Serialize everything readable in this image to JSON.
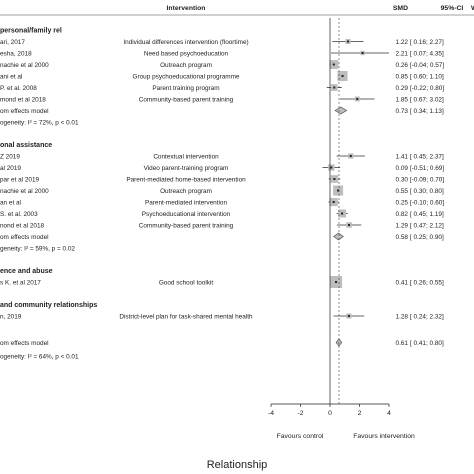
{
  "chart_data": {
    "type": "forest",
    "title": "",
    "caption": "Relationship",
    "columns": {
      "study": "",
      "intervention": "Intervention",
      "smd": "SMD",
      "ci": "95%-CI",
      "weight": "W"
    },
    "x_ticks": [
      "-4",
      "-2",
      "0",
      "2",
      "4"
    ],
    "xlim": [
      -4,
      4
    ],
    "favours_left": "Favours control",
    "favours_right": "Favours intervention",
    "groups": [
      {
        "header": "personal/family rel",
        "studies": [
          {
            "study": "ari, 2017",
            "intervention": "Individual differences intervention (floortime)",
            "smd": 1.22,
            "lo": 0.16,
            "hi": 2.27,
            "smd_text": "1.22",
            "ci_text": "[ 0.16; 2.27]"
          },
          {
            "study": "esha, 2018",
            "intervention": "Need based psychoeducation",
            "smd": 2.21,
            "lo": 0.07,
            "hi": 4.35,
            "smd_text": "2.21",
            "ci_text": "[ 0.07; 4.35]"
          },
          {
            "study": "nachie et al 2000",
            "intervention": "Outreach program",
            "smd": 0.26,
            "lo": -0.04,
            "hi": 0.57,
            "smd_text": "0.26",
            "ci_text": "[-0.04; 0.57]"
          },
          {
            "study": "ani et al",
            "intervention": "Group psychoeducational programme",
            "smd": 0.85,
            "lo": 0.6,
            "hi": 1.1,
            "smd_text": "0.85",
            "ci_text": "[ 0.60; 1.10]"
          },
          {
            "study": "P. et al. 2008",
            "intervention": "Parent training program",
            "smd": 0.29,
            "lo": -0.22,
            "hi": 0.8,
            "smd_text": "0.29",
            "ci_text": "[-0.22; 0.80]"
          },
          {
            "study": "mond et al 2018",
            "intervention": "Community-based parent training",
            "smd": 1.85,
            "lo": 0.67,
            "hi": 3.02,
            "smd_text": "1.85",
            "ci_text": "[ 0.67; 3.02]"
          }
        ],
        "model": {
          "label": "om effects model",
          "smd": 0.73,
          "lo": 0.34,
          "hi": 1.13,
          "smd_text": "0.73",
          "ci_text": "[ 0.34; 1.13]"
        },
        "heterogeneity": "ogeneity: I² = 72%, p < 0.01"
      },
      {
        "header": "onal assistance",
        "studies": [
          {
            "study": "Z 2019",
            "intervention": "Contextual intervention",
            "smd": 1.41,
            "lo": 0.45,
            "hi": 2.37,
            "smd_text": "1.41",
            "ci_text": "[ 0.45; 2.37]"
          },
          {
            "study": "al 2019",
            "intervention": "Video parent-training program",
            "smd": 0.09,
            "lo": -0.51,
            "hi": 0.69,
            "smd_text": "0.09",
            "ci_text": "[-0.51; 0.69]"
          },
          {
            "study": "par et al 2019",
            "intervention": "Parent-mediated home-based intervention",
            "smd": 0.3,
            "lo": -0.09,
            "hi": 0.7,
            "smd_text": "0.30",
            "ci_text": "[-0.09; 0.70]"
          },
          {
            "study": "nachie et al 2000",
            "intervention": "Outreach program",
            "smd": 0.55,
            "lo": 0.3,
            "hi": 0.8,
            "smd_text": "0.55",
            "ci_text": "[ 0.30; 0.80]"
          },
          {
            "study": "an et al",
            "intervention": "Parent-mediated intervention",
            "smd": 0.25,
            "lo": -0.1,
            "hi": 0.6,
            "smd_text": "0.25",
            "ci_text": "[-0.10; 0.60]"
          },
          {
            "study": "S. et al. 2003",
            "intervention": "Psychoeducational intervention",
            "smd": 0.82,
            "lo": 0.45,
            "hi": 1.19,
            "smd_text": "0.82",
            "ci_text": "[ 0.45; 1.19]"
          },
          {
            "study": "nond et al 2018",
            "intervention": "Community-based parent training",
            "smd": 1.29,
            "lo": 0.47,
            "hi": 2.12,
            "smd_text": "1.29",
            "ci_text": "[ 0.47; 2.12]"
          }
        ],
        "model": {
          "label": "om effects model",
          "smd": 0.58,
          "lo": 0.25,
          "hi": 0.9,
          "smd_text": "0.58",
          "ci_text": "[ 0.25; 0.90]"
        },
        "heterogeneity": "geneity: I² = 59%, p = 0.02"
      },
      {
        "header": "ence and abuse",
        "studies": [
          {
            "study": "s K. et al 2017",
            "intervention": "Good school toolkit",
            "smd": 0.41,
            "lo": 0.26,
            "hi": 0.55,
            "smd_text": "0.41",
            "ci_text": "[ 0.26; 0.55]"
          }
        ]
      },
      {
        "header": "and community relationships",
        "studies": [
          {
            "study": "n, 2019",
            "intervention": "District-level plan for task-shared mental health",
            "smd": 1.28,
            "lo": 0.24,
            "hi": 2.32,
            "smd_text": "1.28",
            "ci_text": "[ 0.24; 2.32]"
          }
        ]
      }
    ],
    "overall": {
      "label": "om effects model",
      "smd": 0.61,
      "lo": 0.41,
      "hi": 0.8,
      "smd_text": "0.61",
      "ci_text": "[ 0.41; 0.80]"
    },
    "overall_heterogeneity": "ogeneity: I² = 64%, p < 0.01"
  }
}
